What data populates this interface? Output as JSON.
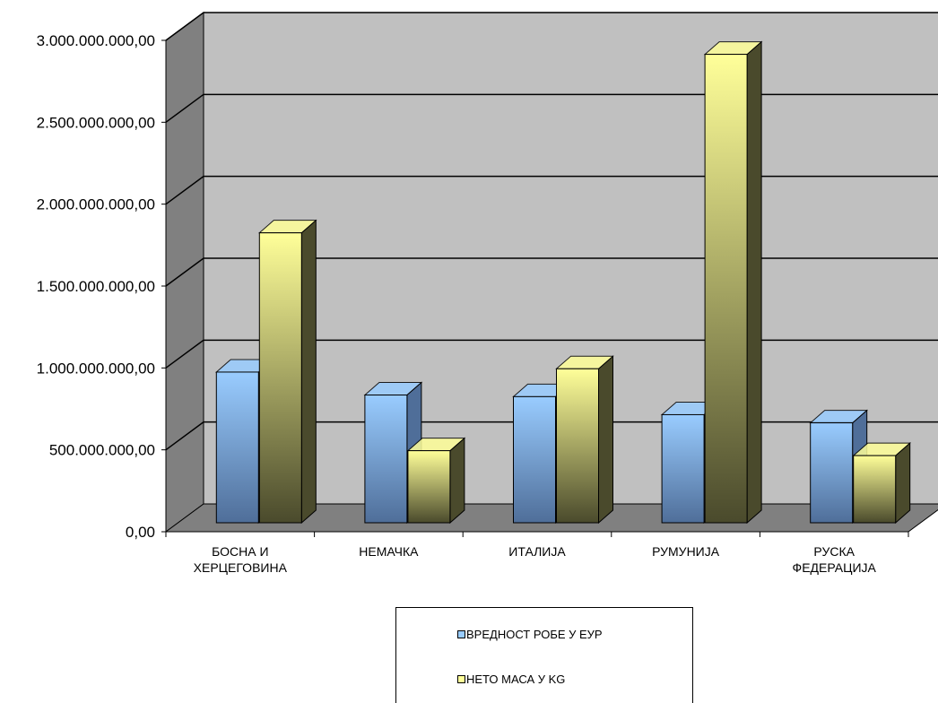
{
  "chart_data": {
    "type": "bar",
    "title": "",
    "xlabel": "",
    "ylabel": "",
    "ylim": [
      0,
      3000000000
    ],
    "yticks": [
      0,
      500000000,
      1000000000,
      1500000000,
      2000000000,
      2500000000,
      3000000000
    ],
    "ytick_labels": [
      "0,00",
      "500.000.000,00",
      "1.000.000.000,00",
      "1.500.000.000,00",
      "2.000.000.000,00",
      "2.500.000.000,00",
      "3.000.000.000,00"
    ],
    "categories": [
      "БОСНА И ХЕРЦЕГОВИНА",
      "НЕМАЧКА",
      "ИТАЛИЈА",
      "РУМУНИЈА",
      "РУСКА ФЕДЕРАЦИЈА"
    ],
    "category_lines": [
      [
        "БОСНА И",
        "ХЕРЦЕГОВИНА"
      ],
      [
        "НЕМАЧКА"
      ],
      [
        "ИТАЛИЈА"
      ],
      [
        "РУМУНИЈА"
      ],
      [
        "РУСКА",
        "ФЕДЕРАЦИЈА"
      ]
    ],
    "series": [
      {
        "name": "ВРЕДНОСТ РОБЕ У ЕУР",
        "values": [
          920000000,
          780000000,
          770000000,
          660000000,
          610000000
        ],
        "color": "#99ccff",
        "color_dark": "#4f6e99"
      },
      {
        "name": "НЕТО МАСА У KG",
        "values": [
          1770000000,
          440000000,
          940000000,
          2860000000,
          410000000
        ],
        "color": "#ffff99",
        "color_dark": "#4a4a2c"
      }
    ],
    "grid": true,
    "style": "3d-clustered-column",
    "wall_color": "#c0c0c0",
    "side_wall_color": "#808080",
    "floor_color": "#808080",
    "legend_position": "bottom"
  },
  "legend": {
    "items": [
      {
        "label": "ВРЕДНОСТ РОБЕ У ЕУР",
        "color": "#99ccff"
      },
      {
        "label": "НЕТО МАСА У KG",
        "color": "#ffff99"
      }
    ]
  }
}
